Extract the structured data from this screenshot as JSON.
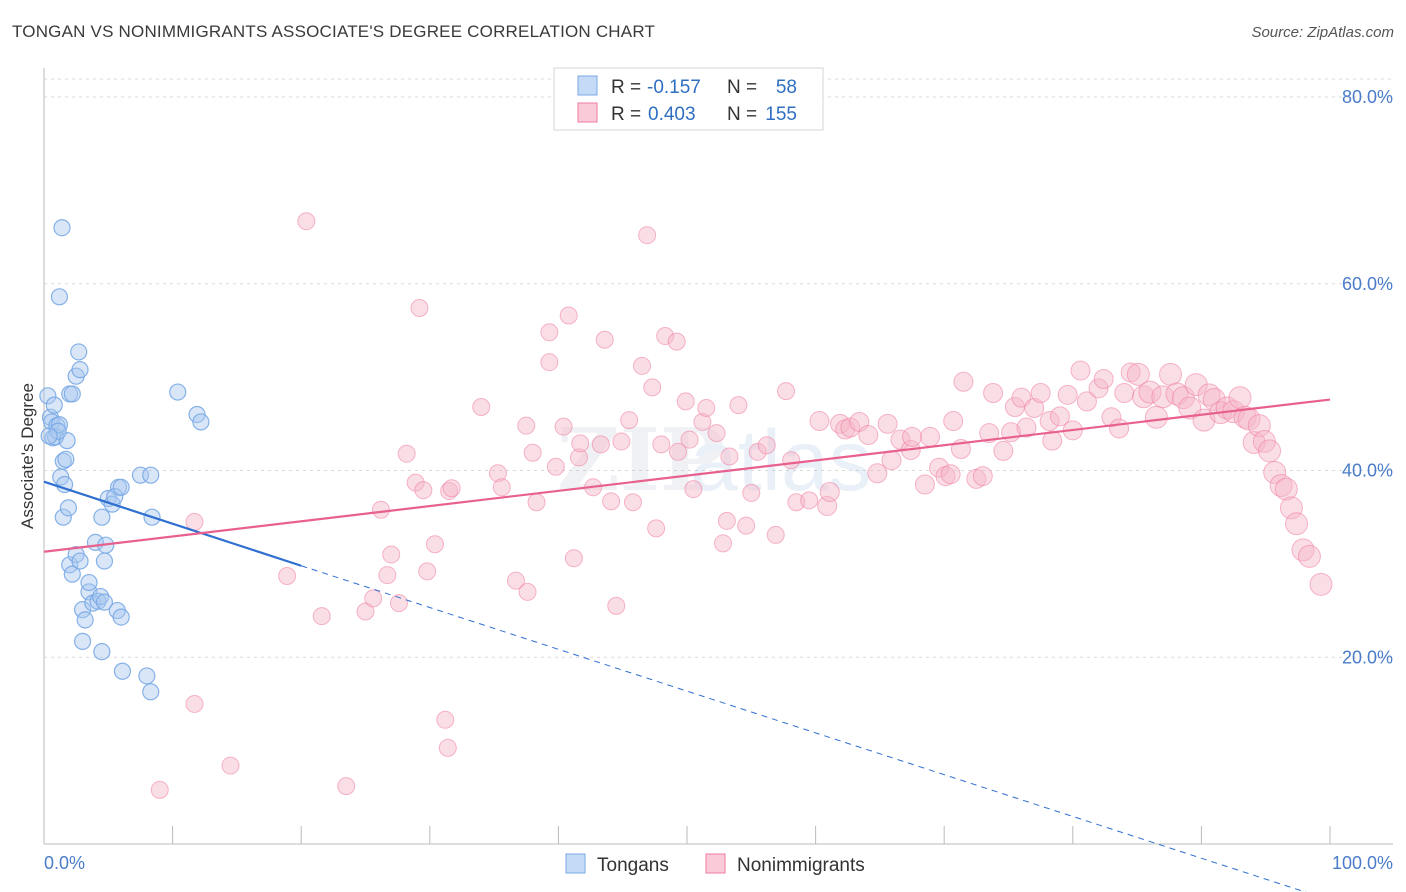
{
  "title": "TONGAN VS NONIMMIGRANTS ASSOCIATE'S DEGREE CORRELATION CHART",
  "source": "Source: ZipAtlas.com",
  "chart_data": {
    "type": "scatter",
    "xlabel": "",
    "ylabel": "Associate's Degree",
    "xlim": [
      0,
      100
    ],
    "ylim": [
      0,
      80
    ],
    "x_tick_labels": [
      "0.0%",
      "100.0%"
    ],
    "y_ticks": [
      20,
      40,
      60,
      80
    ],
    "y_tick_labels": [
      "20.0%",
      "40.0%",
      "60.0%",
      "80.0%"
    ],
    "grid": true,
    "watermark": "ZIPatlas",
    "legend_box": {
      "placement": "top-center",
      "rows": [
        {
          "r_label": "R =",
          "r_value": "-0.157",
          "n_label": "N =",
          "n_value": "58",
          "color": "#a8c8f0"
        },
        {
          "r_label": "R =",
          "r_value": "0.403",
          "n_label": "N =",
          "n_value": "155",
          "color": "#f4b6c8"
        }
      ]
    },
    "bottom_legend": [
      "Tongans",
      "Nonimmigrants"
    ],
    "series": [
      {
        "name": "Tongans",
        "color": "#7aaae6",
        "fill": "rgba(168,200,240,0.45)",
        "trend": {
          "x0": 0,
          "y0": 38.8,
          "x1": 20,
          "y1": 29.8,
          "dash_to_x": 100,
          "dash_to_y": -6
        },
        "points": [
          [
            0.3,
            48
          ],
          [
            0.5,
            45.7
          ],
          [
            0.6,
            45.2
          ],
          [
            0.8,
            47
          ],
          [
            1,
            44.8
          ],
          [
            0.7,
            43.5
          ],
          [
            0.9,
            43.6
          ],
          [
            1.2,
            44.9
          ],
          [
            1.3,
            39.3
          ],
          [
            1.5,
            41
          ],
          [
            1.4,
            66
          ],
          [
            1.2,
            58.6
          ],
          [
            1.8,
            43.2
          ],
          [
            2,
            48.2
          ],
          [
            2.2,
            48.2
          ],
          [
            1.7,
            41.2
          ],
          [
            2.5,
            50.1
          ],
          [
            2.7,
            52.7
          ],
          [
            2.8,
            50.8
          ],
          [
            1.5,
            35
          ],
          [
            1.9,
            36
          ],
          [
            2,
            29.9
          ],
          [
            2.2,
            28.9
          ],
          [
            2.5,
            31
          ],
          [
            2.8,
            30.3
          ],
          [
            3,
            25.1
          ],
          [
            3.2,
            24
          ],
          [
            3.5,
            27
          ],
          [
            3.8,
            25.8
          ],
          [
            3,
            21.7
          ],
          [
            3.5,
            28
          ],
          [
            4,
            32.3
          ],
          [
            4.2,
            26
          ],
          [
            4.4,
            26.5
          ],
          [
            4.5,
            35
          ],
          [
            4.8,
            32
          ],
          [
            4.7,
            30.3
          ],
          [
            5,
            37
          ],
          [
            5.3,
            36.4
          ],
          [
            5.8,
            38.2
          ],
          [
            4.7,
            25.9
          ],
          [
            5.7,
            25
          ],
          [
            6,
            24.3
          ],
          [
            5.5,
            37.2
          ],
          [
            6.1,
            18.5
          ],
          [
            6,
            38.2
          ],
          [
            7.5,
            39.5
          ],
          [
            8.3,
            39.5
          ],
          [
            8,
            18
          ],
          [
            8.3,
            16.3
          ],
          [
            8.4,
            35
          ],
          [
            10.4,
            48.4
          ],
          [
            11.9,
            46
          ],
          [
            12.2,
            45.2
          ],
          [
            1.1,
            44.2
          ],
          [
            0.4,
            43.7
          ],
          [
            1.6,
            38.5
          ],
          [
            4.5,
            20.6
          ]
        ]
      },
      {
        "name": "Nonimmigrants",
        "color": "#f07ca0",
        "fill": "rgba(244,182,200,0.45)",
        "trend": {
          "x0": 0,
          "y0": 31.3,
          "x1": 100,
          "y1": 47.6
        },
        "points": [
          [
            9,
            5.8
          ],
          [
            11.7,
            34.5
          ],
          [
            11.7,
            15
          ],
          [
            14.5,
            8.4
          ],
          [
            18.9,
            28.7
          ],
          [
            20.4,
            66.7
          ],
          [
            21.6,
            24.4
          ],
          [
            23.5,
            6.2
          ],
          [
            25,
            24.9
          ],
          [
            25.6,
            26.3
          ],
          [
            26.2,
            35.8
          ],
          [
            26.7,
            28.8
          ],
          [
            27,
            31
          ],
          [
            27.6,
            25.8
          ],
          [
            28.2,
            41.8
          ],
          [
            28.9,
            38.7
          ],
          [
            29.5,
            37.9
          ],
          [
            29.8,
            29.2
          ],
          [
            30.4,
            32.1
          ],
          [
            29.2,
            57.4
          ],
          [
            31.2,
            13.3
          ],
          [
            31.5,
            37.8
          ],
          [
            31.4,
            10.3
          ],
          [
            31.7,
            38.1
          ],
          [
            34,
            46.8
          ],
          [
            35.3,
            39.7
          ],
          [
            35.6,
            38.2
          ],
          [
            36.7,
            28.2
          ],
          [
            37.5,
            44.8
          ],
          [
            37.6,
            27
          ],
          [
            38,
            41.9
          ],
          [
            38.3,
            36.6
          ],
          [
            39.3,
            51.6
          ],
          [
            39.3,
            54.8
          ],
          [
            39.8,
            40.4
          ],
          [
            40.4,
            44.7
          ],
          [
            40.8,
            56.6
          ],
          [
            41.2,
            30.6
          ],
          [
            41.6,
            41.4
          ],
          [
            41.7,
            42.9
          ],
          [
            42.7,
            38.2
          ],
          [
            43.3,
            42.8
          ],
          [
            43.6,
            54
          ],
          [
            44.1,
            36.7
          ],
          [
            44.5,
            25.5
          ],
          [
            44.9,
            43.1
          ],
          [
            45.5,
            45.4
          ],
          [
            45.8,
            36.6
          ],
          [
            46.5,
            51.2
          ],
          [
            46.9,
            65.2
          ],
          [
            47.3,
            48.9
          ],
          [
            47.6,
            33.8
          ],
          [
            48,
            42.8
          ],
          [
            48.3,
            54.4
          ],
          [
            49.2,
            53.8
          ],
          [
            49.3,
            42
          ],
          [
            49.9,
            47.4
          ],
          [
            50.2,
            43.3
          ],
          [
            50.5,
            38
          ],
          [
            51.2,
            45.2
          ],
          [
            51.5,
            46.7
          ],
          [
            52.3,
            44
          ],
          [
            52.8,
            32.2
          ],
          [
            53.1,
            34.6
          ],
          [
            53.3,
            41.5
          ],
          [
            54,
            47
          ],
          [
            54.6,
            34.1
          ],
          [
            55,
            37.6
          ],
          [
            55.5,
            42
          ],
          [
            56.2,
            42.7
          ],
          [
            56.9,
            33.1
          ],
          [
            57.7,
            48.5
          ],
          [
            58.1,
            41.1
          ],
          [
            58.5,
            36.6
          ],
          [
            59.5,
            36.8
          ],
          [
            60.3,
            45.3
          ],
          [
            60.9,
            36.2
          ],
          [
            61.1,
            37.7
          ],
          [
            61.9,
            45
          ],
          [
            62.3,
            44.4
          ],
          [
            62.7,
            44.6
          ],
          [
            63.4,
            45.2
          ],
          [
            64.1,
            43.8
          ],
          [
            64.8,
            39.7
          ],
          [
            65.6,
            45
          ],
          [
            65.9,
            41.1
          ],
          [
            66.6,
            43.3
          ],
          [
            67.4,
            42.2
          ],
          [
            67.5,
            43.6
          ],
          [
            68.5,
            38.5
          ],
          [
            68.9,
            43.6
          ],
          [
            69.6,
            40.3
          ],
          [
            70.1,
            39.4
          ],
          [
            70.5,
            39.6
          ],
          [
            70.7,
            45.3
          ],
          [
            71.3,
            42.3
          ],
          [
            71.5,
            49.5
          ],
          [
            72.5,
            39.1
          ],
          [
            73,
            39.4
          ],
          [
            73.5,
            44
          ],
          [
            73.8,
            48.3
          ],
          [
            74.6,
            42.1
          ],
          [
            75.2,
            44.1
          ],
          [
            75.5,
            46.8
          ],
          [
            76,
            47.8
          ],
          [
            76.4,
            44.6
          ],
          [
            77,
            46.7
          ],
          [
            77.5,
            48.3
          ],
          [
            78.2,
            45.3
          ],
          [
            78.4,
            43.2
          ],
          [
            79,
            45.8
          ],
          [
            79.6,
            48.1
          ],
          [
            80,
            44.3
          ],
          [
            80.6,
            50.7
          ],
          [
            81.1,
            47.4
          ],
          [
            82,
            48.8
          ],
          [
            82.4,
            49.8
          ],
          [
            83,
            45.7
          ],
          [
            83.6,
            44.5
          ],
          [
            84,
            48.3
          ],
          [
            84.5,
            50.5
          ],
          [
            85.1,
            50.3
          ],
          [
            85.5,
            47.9
          ],
          [
            86,
            48.4
          ],
          [
            86.5,
            45.7
          ],
          [
            87,
            47.9
          ],
          [
            87.6,
            50.3
          ],
          [
            88.1,
            48.2
          ],
          [
            88.6,
            47.8
          ],
          [
            89.1,
            46.7
          ],
          [
            89.6,
            49.2
          ],
          [
            90.2,
            45.4
          ],
          [
            90.6,
            48.1
          ],
          [
            91,
            47.6
          ],
          [
            91.5,
            46.2
          ],
          [
            92,
            46.7
          ],
          [
            92.5,
            46.3
          ],
          [
            93,
            47.8
          ],
          [
            93.4,
            45.7
          ],
          [
            93.7,
            45.5
          ],
          [
            94.1,
            43
          ],
          [
            94.5,
            44.8
          ],
          [
            94.9,
            43.1
          ],
          [
            95.3,
            42.1
          ],
          [
            95.7,
            39.8
          ],
          [
            96.2,
            38.4
          ],
          [
            96.6,
            38
          ],
          [
            97,
            36
          ],
          [
            97.4,
            34.3
          ],
          [
            97.9,
            31.5
          ],
          [
            98.4,
            30.8
          ],
          [
            99.3,
            27.8
          ]
        ]
      }
    ]
  }
}
